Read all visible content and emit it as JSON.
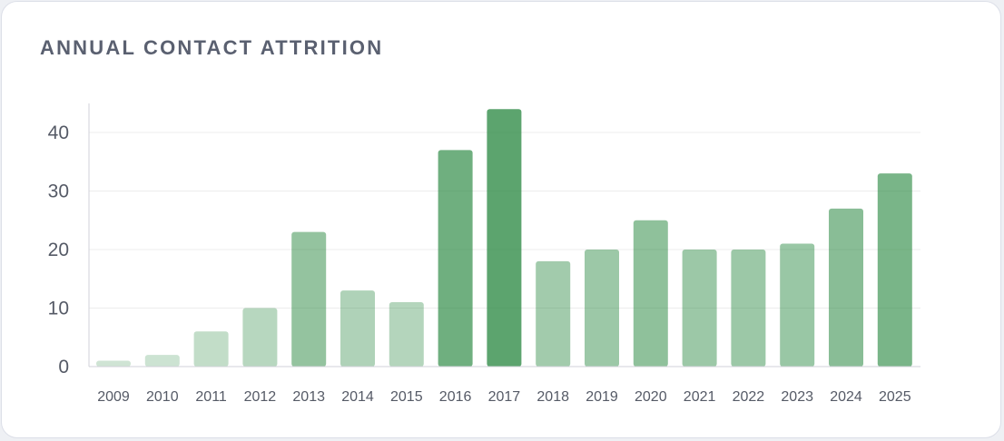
{
  "card": {
    "title": "ANNUAL CONTACT ATTRITION"
  },
  "colors": {
    "bar_base": "#2e8b45",
    "gridline": "#ececec",
    "axis": "#d0d2d8",
    "tick_text": "#555a66",
    "title_text": "#5a6070"
  },
  "chart_data": {
    "type": "bar",
    "title": "ANNUAL CONTACT ATTRITION",
    "xlabel": "",
    "ylabel": "",
    "categories": [
      "2009",
      "2010",
      "2011",
      "2012",
      "2013",
      "2014",
      "2015",
      "2016",
      "2017",
      "2018",
      "2019",
      "2020",
      "2021",
      "2022",
      "2023",
      "2024",
      "2025"
    ],
    "values": [
      1,
      2,
      6,
      10,
      23,
      13,
      11,
      37,
      44,
      18,
      20,
      25,
      20,
      20,
      21,
      27,
      33
    ],
    "ylim": [
      0,
      45
    ],
    "yticks": [
      0,
      10,
      20,
      30,
      40
    ],
    "grid": true,
    "legend": "none"
  }
}
